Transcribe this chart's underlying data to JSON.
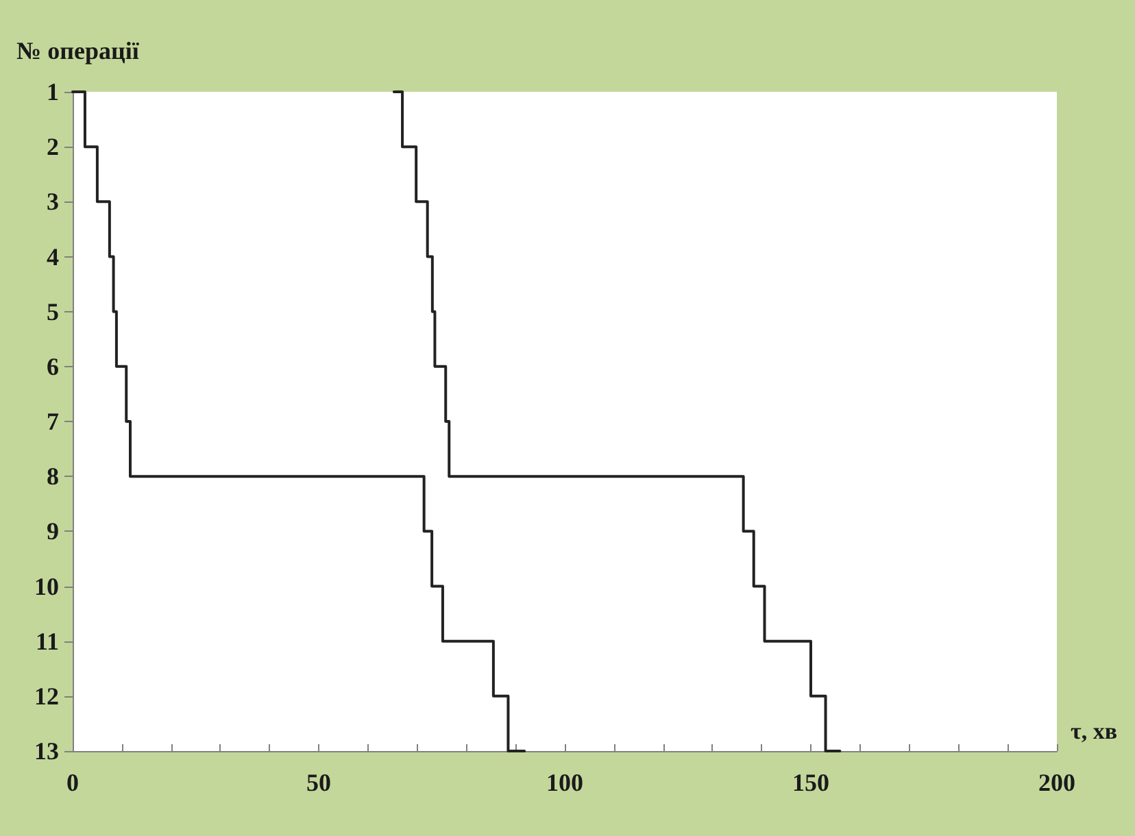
{
  "chart_data": {
    "type": "step",
    "ylabel": "№ операції",
    "xlabel": "τ, хв",
    "xlim": [
      0,
      200
    ],
    "xticks": [
      0,
      {
        "value": 10,
        "label": null
      },
      {
        "value": 20,
        "label": null
      },
      {
        "value": 30,
        "label": null
      },
      {
        "value": 40,
        "label": null
      },
      50,
      {
        "value": 60,
        "label": null
      },
      {
        "value": 70,
        "label": null
      },
      {
        "value": 80,
        "label": null
      },
      {
        "value": 90,
        "label": null
      },
      100,
      {
        "value": 110,
        "label": null
      },
      {
        "value": 120,
        "label": null
      },
      {
        "value": 130,
        "label": null
      },
      {
        "value": 140,
        "label": null
      },
      150,
      {
        "value": 160,
        "label": null
      },
      {
        "value": 170,
        "label": null
      },
      {
        "value": 180,
        "label": null
      },
      {
        "value": 190,
        "label": null
      },
      200
    ],
    "ylim": [
      13,
      1
    ],
    "yticks": [
      1,
      2,
      3,
      4,
      5,
      6,
      7,
      8,
      9,
      10,
      11,
      12,
      13
    ],
    "grid": false,
    "marker": "none",
    "line_style": "solid",
    "series": [
      {
        "color": "#222222",
        "x": [
          0,
          2.5,
          5,
          7.5,
          8.3,
          8.9,
          10.9,
          11.7,
          71.4,
          73,
          75.2,
          85.5,
          88.5,
          91.8
        ],
        "values": [
          1,
          2,
          3,
          4,
          5,
          6,
          7,
          8,
          9,
          10,
          11,
          12,
          13,
          13
        ]
      },
      {
        "color": "#222222",
        "x": [
          65.3,
          67,
          69.8,
          72.1,
          73.1,
          73.6,
          75.8,
          76.5,
          136.3,
          138.4,
          140.6,
          150,
          153,
          155.9
        ],
        "values": [
          1,
          2,
          3,
          4,
          5,
          6,
          7,
          8,
          9,
          10,
          11,
          12,
          13,
          13
        ]
      }
    ]
  }
}
